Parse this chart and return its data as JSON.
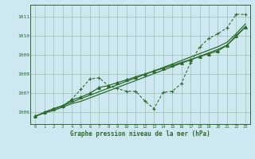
{
  "title": "Graphe pression niveau de la mer (hPa)",
  "background_color": "#cde8f0",
  "grid_color": "#9dbfad",
  "line_color": "#2d6a2d",
  "x_ticks": [
    0,
    1,
    2,
    3,
    4,
    5,
    6,
    7,
    8,
    9,
    10,
    11,
    12,
    13,
    14,
    15,
    16,
    17,
    18,
    19,
    20,
    21,
    22,
    23
  ],
  "y_ticks": [
    1006,
    1007,
    1008,
    1009,
    1010,
    1011
  ],
  "ylim": [
    1005.4,
    1011.6
  ],
  "xlim": [
    -0.5,
    23.5
  ],
  "series_dashed": [
    1005.8,
    1006.0,
    1006.2,
    1006.3,
    1006.7,
    1007.2,
    1007.75,
    1007.8,
    1007.4,
    1007.25,
    1007.1,
    1007.1,
    1006.6,
    1006.2,
    1007.05,
    1007.1,
    1007.5,
    1008.6,
    1009.4,
    1009.85,
    1010.1,
    1010.4,
    1011.1,
    1011.1
  ],
  "series_tri": [
    1005.8,
    1006.0,
    1006.2,
    1006.35,
    1006.65,
    1006.8,
    1007.0,
    1007.3,
    1007.4,
    1007.55,
    1007.7,
    1007.85,
    1008.0,
    1008.15,
    1008.3,
    1008.45,
    1008.6,
    1008.75,
    1008.9,
    1009.05,
    1009.2,
    1009.5,
    1010.0,
    1010.45
  ],
  "series_line1": [
    1005.8,
    1006.0,
    1006.18,
    1006.36,
    1006.54,
    1006.72,
    1006.9,
    1007.08,
    1007.26,
    1007.44,
    1007.62,
    1007.8,
    1007.98,
    1008.16,
    1008.34,
    1008.52,
    1008.7,
    1008.88,
    1009.06,
    1009.24,
    1009.42,
    1009.65,
    1010.1,
    1010.6
  ],
  "series_line2": [
    1005.8,
    1005.98,
    1006.1,
    1006.28,
    1006.46,
    1006.58,
    1006.76,
    1006.94,
    1007.12,
    1007.3,
    1007.48,
    1007.66,
    1007.84,
    1008.02,
    1008.2,
    1008.38,
    1008.56,
    1008.74,
    1008.92,
    1009.1,
    1009.28,
    1009.5,
    1009.95,
    1010.45
  ]
}
